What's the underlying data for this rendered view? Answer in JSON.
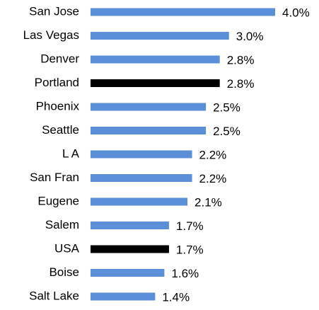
{
  "chart_data": {
    "type": "barh",
    "categories": [
      "San Jose",
      "Las Vegas",
      "Denver",
      "Portland",
      "Phoenix",
      "Seattle",
      "L A",
      "San Fran",
      "Eugene",
      "Salem",
      "USA",
      "Boise",
      "Salt Lake"
    ],
    "values": [
      4.0,
      3.0,
      2.8,
      2.8,
      2.5,
      2.5,
      2.2,
      2.2,
      2.1,
      1.7,
      1.7,
      1.6,
      1.4
    ],
    "value_labels": [
      "4.0%",
      "3.0%",
      "2.8%",
      "2.8%",
      "2.5%",
      "2.5%",
      "2.2%",
      "2.2%",
      "2.1%",
      "1.7%",
      "1.7%",
      "1.6%",
      "1.4%"
    ],
    "colors": [
      "#5b8fd8",
      "#5b8fd8",
      "#5b8fd8",
      "#000000",
      "#5b8fd8",
      "#5b8fd8",
      "#5b8fd8",
      "#5b8fd8",
      "#5b8fd8",
      "#5b8fd8",
      "#000000",
      "#5b8fd8",
      "#5b8fd8"
    ]
  }
}
